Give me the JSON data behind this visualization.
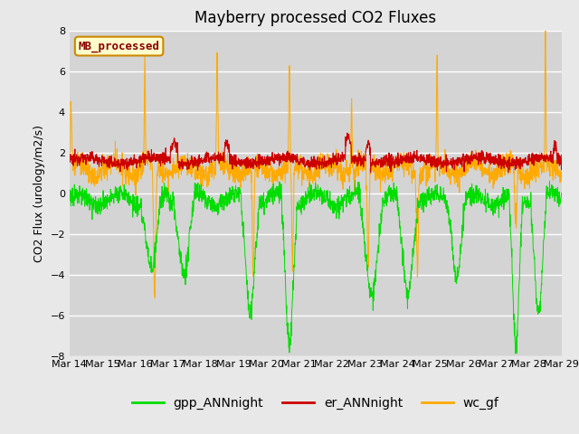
{
  "title": "Mayberry processed CO2 Fluxes",
  "ylabel": "CO2 Flux (urology/m2/s)",
  "ylim": [
    -8,
    8
  ],
  "yticks": [
    -8,
    -6,
    -4,
    -2,
    0,
    2,
    4,
    6,
    8
  ],
  "x_labels": [
    "Mar 14",
    "Mar 15",
    "Mar 16",
    "Mar 17",
    "Mar 18",
    "Mar 19",
    "Mar 20",
    "Mar 21",
    "Mar 22",
    "Mar 23",
    "Mar 24",
    "Mar 25",
    "Mar 26",
    "Mar 27",
    "Mar 28",
    "Mar 29"
  ],
  "legend_label": "MB_processed",
  "line_labels": [
    "gpp_ANNnight",
    "er_ANNnight",
    "wc_gf"
  ],
  "line_colors": [
    "#00dd00",
    "#cc0000",
    "#ffaa00"
  ],
  "fig_facecolor": "#e8e8e8",
  "plot_facecolor": "#d4d4d4",
  "n_points": 2000,
  "title_fontsize": 12,
  "legend_fontsize": 10,
  "tick_fontsize": 8
}
